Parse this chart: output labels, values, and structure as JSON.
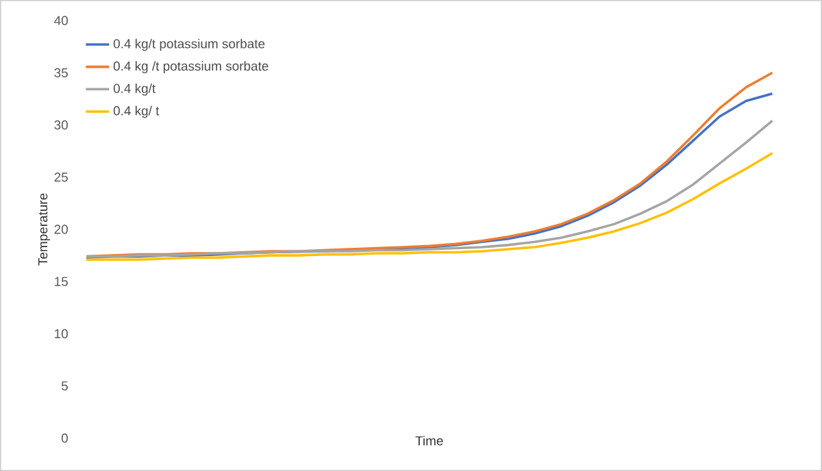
{
  "chart_data": {
    "type": "line",
    "xlabel": "Time",
    "ylabel": "Temperature",
    "ylim": [
      0,
      40
    ],
    "yticks": [
      0,
      5,
      10,
      15,
      20,
      25,
      30,
      35,
      40
    ],
    "grid": false,
    "legend": "top left",
    "categories": [
      null,
      null,
      null,
      null,
      null,
      null,
      null,
      null,
      null,
      null,
      null,
      null,
      null,
      null,
      null,
      null,
      null,
      null,
      null,
      null,
      null,
      null,
      null,
      null,
      null,
      null,
      null
    ],
    "series": [
      {
        "name": "0.4 kg/t potassium sorbate",
        "color": "#4472c4",
        "values": [
          17.3,
          17.4,
          17.4,
          17.5,
          17.5,
          17.6,
          17.7,
          17.8,
          null,
          17.9,
          null,
          null,
          18.2,
          18.3,
          18.5,
          18.8,
          19.1,
          19.6,
          20.3,
          21.3,
          22.6,
          24.2,
          26.2,
          28.5,
          30.8,
          32.3,
          33.0
        ]
      },
      {
        "name": "0.4 kg /t potassium sorbate",
        "color": "#ed7d31",
        "values": [
          17.4,
          17.5,
          17.6,
          17.6,
          17.7,
          17.7,
          17.8,
          17.9,
          17.9,
          18.0,
          18.1,
          18.2,
          18.3,
          18.4,
          18.6,
          18.9,
          19.3,
          19.8,
          20.5,
          21.5,
          22.8,
          24.4,
          26.5,
          29.0,
          31.6,
          33.6,
          35.0
        ]
      },
      {
        "name": "0.4 kg/t",
        "color": "#a5a5a5",
        "values": [
          17.4,
          17.4,
          17.5,
          17.5,
          17.6,
          17.7,
          17.7,
          17.8,
          17.9,
          17.9,
          17.9,
          18.0,
          18.0,
          18.1,
          18.2,
          18.3,
          18.5,
          18.8,
          19.2,
          19.8,
          20.5,
          21.5,
          22.7,
          24.3,
          26.3,
          28.3,
          30.4
        ]
      },
      {
        "name": "0.4 kg/ t",
        "color": "#ffc000",
        "values": [
          17.1,
          17.1,
          17.1,
          17.2,
          17.3,
          17.3,
          17.4,
          17.5,
          17.5,
          17.6,
          17.6,
          17.7,
          17.7,
          17.8,
          17.8,
          17.9,
          18.1,
          18.3,
          18.7,
          19.2,
          19.8,
          20.6,
          21.6,
          22.9,
          24.4,
          25.8,
          27.3
        ]
      }
    ]
  }
}
